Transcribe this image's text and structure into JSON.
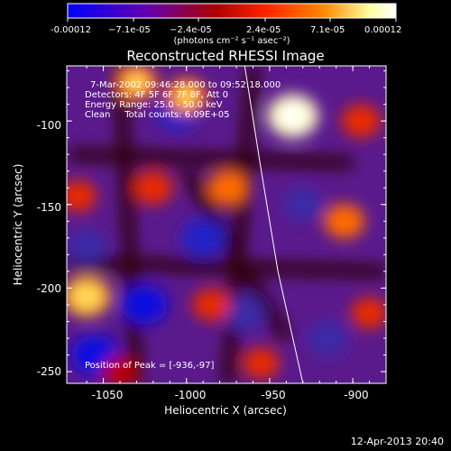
{
  "colorbar": {
    "tick_labels": [
      "-0.00012",
      "−7.1e-05",
      "−2.4e-05",
      "2.4e-05",
      "7.1e-05",
      "0.00012"
    ],
    "units": "(photons cm⁻² s⁻¹ asec⁻²)",
    "min": -0.00012,
    "max": 0.00012,
    "colormap": [
      "#0000ff",
      "#6600aa",
      "#aa0000",
      "#ff2200",
      "#ff8800",
      "#ffffa0",
      "#ffffff"
    ]
  },
  "plot": {
    "title": "Reconstructed RHESSI Image",
    "xlabel": "Heliocentric X (arcsec)",
    "ylabel": "Heliocentric Y (arcsec)",
    "x_ticks": [
      "-1050",
      "-1000",
      "-950",
      "-900"
    ],
    "y_ticks": [
      "-100",
      "-150",
      "-200",
      "-250"
    ],
    "xlim": [
      -1072,
      -880
    ],
    "ylim": [
      -257,
      -67
    ]
  },
  "annotations": {
    "time_range": "7-Mar-2002 09:46:28.000 to 09:52:18.000",
    "detectors": "Detectors: 4F 5F 6F 7F 8F, Att 0",
    "energy": "Energy Range: 25.0 - 50.0 keV",
    "clean": "Clean     Total counts: 6.09E+05",
    "peak": "Position of Peak = [-936,-97]"
  },
  "footer": {
    "timestamp": "12-Apr-2013 20:40"
  },
  "chart_data": {
    "type": "heatmap",
    "title": "Reconstructed RHESSI Image",
    "xlabel": "Heliocentric X (arcsec)",
    "ylabel": "Heliocentric Y (arcsec)",
    "xlim": [
      -1072,
      -880
    ],
    "ylim": [
      -257,
      -67
    ],
    "value_range": [
      -0.00012,
      0.00012
    ],
    "peak": [
      -936,
      -97
    ],
    "limb_curve": [
      [
        -965,
        -67
      ],
      [
        -955,
        -130
      ],
      [
        -945,
        -190
      ],
      [
        -930,
        -257
      ]
    ],
    "hotspots": [
      {
        "x": -936,
        "y": -97,
        "level": 1.0
      },
      {
        "x": -1060,
        "y": -205,
        "level": 0.9
      },
      {
        "x": -1030,
        "y": -77,
        "level": 0.7
      },
      {
        "x": -1000,
        "y": -85,
        "level": 0.65
      },
      {
        "x": -975,
        "y": -140,
        "level": 0.6
      },
      {
        "x": -1020,
        "y": -140,
        "level": 0.55
      },
      {
        "x": -905,
        "y": -160,
        "level": 0.6
      },
      {
        "x": -895,
        "y": -100,
        "level": 0.55
      },
      {
        "x": -1065,
        "y": -145,
        "level": 0.45
      },
      {
        "x": -985,
        "y": -210,
        "level": 0.5
      },
      {
        "x": -890,
        "y": -215,
        "level": 0.45
      },
      {
        "x": -1040,
        "y": -250,
        "level": 0.4
      },
      {
        "x": -955,
        "y": -245,
        "level": 0.45
      }
    ],
    "coldspots": [
      {
        "x": -1005,
        "y": -95,
        "level": -0.7
      },
      {
        "x": -990,
        "y": -170,
        "level": -0.75
      },
      {
        "x": -1025,
        "y": -210,
        "level": -0.8
      },
      {
        "x": -1055,
        "y": -240,
        "level": -0.85
      },
      {
        "x": -930,
        "y": -150,
        "level": -0.5
      },
      {
        "x": -915,
        "y": -230,
        "level": -0.6
      },
      {
        "x": -1060,
        "y": -175,
        "level": -0.55
      },
      {
        "x": -965,
        "y": -215,
        "level": -0.6
      }
    ]
  }
}
